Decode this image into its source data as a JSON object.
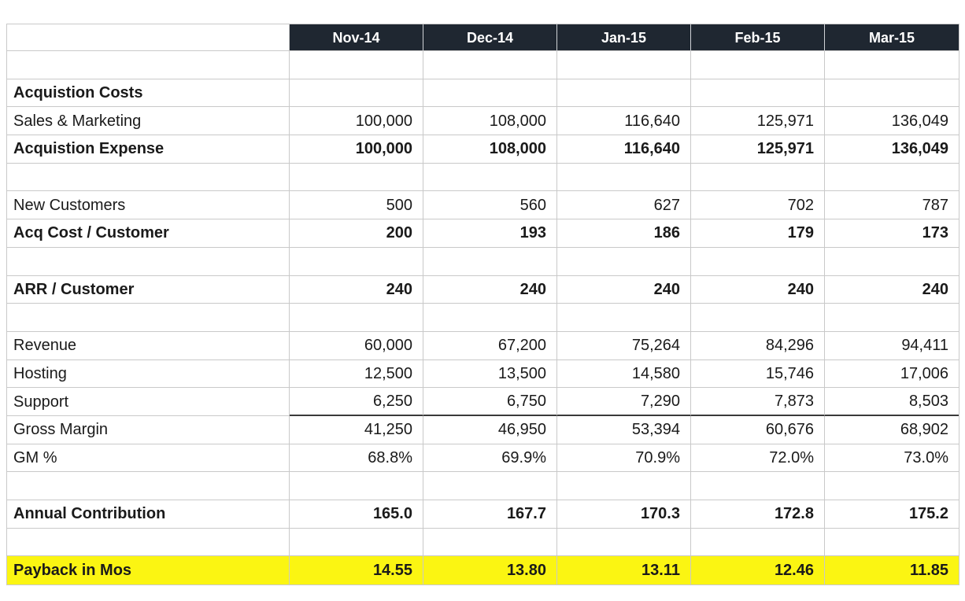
{
  "table": {
    "corner_label": "",
    "columns": [
      "Nov-14",
      "Dec-14",
      "Jan-15",
      "Feb-15",
      "Mar-15"
    ],
    "rows": [
      {
        "label": "",
        "values": [
          "",
          "",
          "",
          "",
          ""
        ]
      },
      {
        "label": "Acquistion Costs",
        "bold": true,
        "values": [
          "",
          "",
          "",
          "",
          ""
        ]
      },
      {
        "label": "Sales & Marketing",
        "values": [
          "100,000",
          "108,000",
          "116,640",
          "125,971",
          "136,049"
        ]
      },
      {
        "label": "Acquistion Expense",
        "bold": true,
        "values": [
          "100,000",
          "108,000",
          "116,640",
          "125,971",
          "136,049"
        ]
      },
      {
        "label": "",
        "values": [
          "",
          "",
          "",
          "",
          ""
        ]
      },
      {
        "label": "New Customers",
        "values": [
          "500",
          "560",
          "627",
          "702",
          "787"
        ]
      },
      {
        "label": "Acq Cost / Customer",
        "bold": true,
        "values": [
          "200",
          "193",
          "186",
          "179",
          "173"
        ]
      },
      {
        "label": "",
        "values": [
          "",
          "",
          "",
          "",
          ""
        ]
      },
      {
        "label": "ARR / Customer",
        "bold": true,
        "values": [
          "240",
          "240",
          "240",
          "240",
          "240"
        ]
      },
      {
        "label": "",
        "values": [
          "",
          "",
          "",
          "",
          ""
        ]
      },
      {
        "label": "Revenue",
        "values": [
          "60,000",
          "67,200",
          "75,264",
          "84,296",
          "94,411"
        ]
      },
      {
        "label": "Hosting",
        "values": [
          "12,500",
          "13,500",
          "14,580",
          "15,746",
          "17,006"
        ]
      },
      {
        "label": "Support",
        "thick_bottom": true,
        "values": [
          "6,250",
          "6,750",
          "7,290",
          "7,873",
          "8,503"
        ]
      },
      {
        "label": "Gross Margin",
        "values": [
          "41,250",
          "46,950",
          "53,394",
          "60,676",
          "68,902"
        ]
      },
      {
        "label": "GM %",
        "values": [
          "68.8%",
          "69.9%",
          "70.9%",
          "72.0%",
          "73.0%"
        ]
      },
      {
        "label": "",
        "values": [
          "",
          "",
          "",
          "",
          ""
        ]
      },
      {
        "label": "Annual Contribution",
        "bold": true,
        "values": [
          "165.0",
          "167.7",
          "170.3",
          "172.8",
          "175.2"
        ]
      },
      {
        "label": "",
        "values": [
          "",
          "",
          "",
          "",
          ""
        ]
      },
      {
        "label": "Payback in Mos",
        "bold": true,
        "highlight": true,
        "values": [
          "14.55",
          "13.80",
          "13.11",
          "12.46",
          "11.85"
        ]
      }
    ]
  },
  "colors": {
    "header_bg": "#1f2731",
    "header_text": "#ffffff",
    "grid_line": "#c9c9c9",
    "highlight_yellow": "#fbf512",
    "sum_border": "#3a3a3a",
    "text": "#1a1a1a"
  }
}
